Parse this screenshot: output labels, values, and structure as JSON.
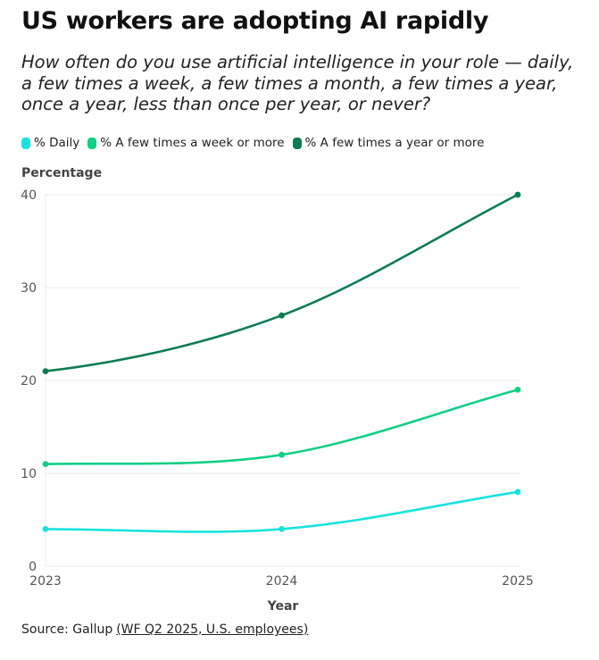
{
  "title": "US workers are adopting AI rapidly",
  "subtitle": "How often do you use artificial intelligence in your role — daily, a few times a week, a few times a month, a few times a year, once a year, less than once per year, or never?",
  "source": {
    "label": "Source: Gallup",
    "link_text": "(WF Q2 2025, U.S. employees)"
  },
  "chart_data": {
    "type": "line",
    "x": [
      2023,
      2024,
      2025
    ],
    "xlabel": "Year",
    "ylabel": "Percentage",
    "ylim": [
      0,
      40
    ],
    "yticks": [
      0,
      10,
      20,
      30,
      40
    ],
    "grid": true,
    "legend_position": "top-left",
    "series": [
      {
        "name": "% Daily",
        "color": "#19e3de",
        "values": [
          4,
          4,
          8
        ]
      },
      {
        "name": "% A few times a week or more",
        "color": "#12cf85",
        "values": [
          11,
          12,
          19
        ]
      },
      {
        "name": "% A few times a year or more",
        "color": "#0b7d50",
        "values": [
          21,
          27,
          40
        ]
      }
    ]
  }
}
